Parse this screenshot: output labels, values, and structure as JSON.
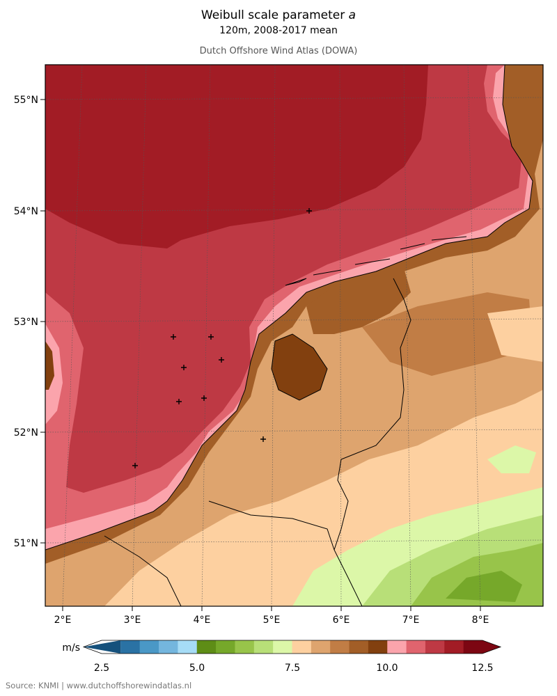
{
  "header": {
    "title_text": "Weibull scale parameter ",
    "title_param": "a",
    "subtitle": "120m, 2008-2017 mean",
    "dataset": "Dutch Offshore Wind Atlas (DOWA)"
  },
  "axes": {
    "lat_labels": [
      "55°N",
      "54°N",
      "53°N",
      "52°N",
      "51°N"
    ],
    "lon_labels": [
      "2°E",
      "3°E",
      "4°E",
      "5°E",
      "6°E",
      "7°E",
      "8°E"
    ]
  },
  "colorbar": {
    "unit": "m/s",
    "tick_labels": [
      "2.5",
      "5.0",
      "7.5",
      "10.0",
      "12.5"
    ],
    "colors": [
      "#15517c",
      "#2a72a4",
      "#4a98c6",
      "#74b6de",
      "#a6dcf6",
      "#5e8d16",
      "#76a82a",
      "#98c44a",
      "#b8df78",
      "#dcf7a8",
      "#fdd0a0",
      "#dea46e",
      "#c17d45",
      "#a25e27",
      "#82400f",
      "#fba4ac",
      "#e0646e",
      "#be3944",
      "#a21c25",
      "#7c0612"
    ]
  },
  "footer": {
    "source": "Source: KNMI | www.dutchoffshorewindatlas.nl"
  }
}
